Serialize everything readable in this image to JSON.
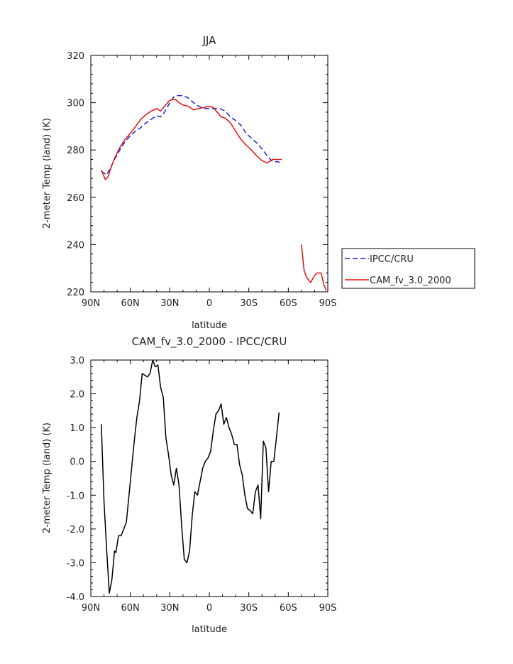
{
  "chart_data": [
    {
      "type": "line",
      "title": "JJA",
      "xlabel": "latitude",
      "ylabel": "2-meter Temp (land) (K)",
      "xlim": [
        90,
        -90
      ],
      "ylim": [
        220,
        320
      ],
      "x_ticks": [
        90,
        60,
        30,
        0,
        -30,
        -60,
        -90
      ],
      "x_tick_labels": [
        "90N",
        "60N",
        "30N",
        "0",
        "30S",
        "60S",
        "90S"
      ],
      "y_ticks": [
        220,
        240,
        260,
        280,
        300,
        320
      ],
      "y_tick_labels": [
        "220",
        "240",
        "260",
        "280",
        "300",
        "320"
      ],
      "legend": {
        "placement": "right, outside the plot"
      },
      "series": [
        {
          "name": "IPCC/CRU",
          "color": "#1f1fd6",
          "dash": "dashed",
          "segments": [
            {
              "x": [
                82,
                78,
                75,
                72,
                68,
                64,
                60,
                56,
                52,
                48,
                44,
                40,
                37,
                34,
                30,
                27,
                24,
                20,
                16,
                12,
                8,
                4,
                0,
                -4,
                -8,
                -12,
                -16,
                -20,
                -24,
                -28,
                -32,
                -36,
                -40,
                -44,
                -48,
                -52,
                -55
              ],
              "y": [
                271,
                269.5,
                272.5,
                276,
                280,
                283.5,
                286,
                288,
                289.5,
                291.5,
                293,
                294.5,
                294,
                296,
                300,
                302.5,
                303,
                303,
                302,
                300,
                298.5,
                297.5,
                297.5,
                297.5,
                297.5,
                296.5,
                294,
                292.5,
                290.5,
                287,
                285,
                283,
                280.5,
                277.5,
                275,
                275,
                274.5
              ]
            }
          ]
        },
        {
          "name": "CAM_fv_3.0_2000",
          "color": "#e01010",
          "dash": "solid",
          "segments": [
            {
              "x": [
                82,
                79,
                77,
                75,
                72,
                68,
                64,
                60,
                56,
                52,
                48,
                44,
                40,
                37,
                34,
                30,
                26,
                23,
                20,
                16,
                12,
                8,
                4,
                0,
                -3,
                -6,
                -9,
                -12,
                -16,
                -20,
                -24,
                -28,
                -32,
                -36,
                -40,
                -44,
                -48,
                -52,
                -55
              ],
              "y": [
                271.5,
                267.5,
                268.5,
                272,
                276.5,
                281,
                284.5,
                287,
                290,
                293,
                295,
                296.5,
                297.5,
                296.5,
                298.5,
                301,
                301.5,
                300,
                299,
                298.5,
                297,
                297.5,
                298,
                298.5,
                298,
                296,
                294,
                293.5,
                291.5,
                288,
                284.5,
                282,
                280,
                277.5,
                275.5,
                274.5,
                276,
                276,
                276
              ]
            },
            {
              "x": [
                -70,
                -72,
                -74,
                -77,
                -80,
                -82,
                -85,
                -87,
                -89
              ],
              "y": [
                240,
                229,
                226,
                224,
                227,
                228,
                228,
                223,
                220.5
              ]
            }
          ]
        }
      ]
    },
    {
      "type": "line",
      "title": "CAM_fv_3.0_2000 - IPCC/CRU",
      "xlabel": "latitude",
      "ylabel": "2-meter Temp (land) (K)",
      "xlim": [
        90,
        -90
      ],
      "ylim": [
        -4.0,
        3.0
      ],
      "x_ticks": [
        90,
        60,
        30,
        0,
        -30,
        -60,
        -90
      ],
      "x_tick_labels": [
        "90N",
        "60N",
        "30N",
        "0",
        "30S",
        "60S",
        "90S"
      ],
      "y_ticks": [
        -4,
        -3,
        -2,
        -1,
        0,
        1,
        2,
        3
      ],
      "y_tick_labels": [
        "-4.0",
        "-3.0",
        "-2.0",
        "-1.0",
        "0.0",
        "1.0",
        "2.0",
        "3.0"
      ],
      "series": [
        {
          "color": "#000000",
          "dash": "solid",
          "segments": [
            {
              "x": [
                82,
                80,
                78,
                76,
                74,
                72,
                71,
                69,
                67,
                65,
                63,
                61,
                59,
                57,
                55,
                53,
                51,
                49,
                47,
                45,
                43,
                41,
                39,
                37,
                35,
                33,
                31,
                29,
                27,
                25,
                23,
                21,
                19,
                17,
                15,
                13,
                11,
                9,
                7,
                5,
                3,
                1,
                -1,
                -3,
                -5,
                -7,
                -9,
                -11,
                -13,
                -15,
                -17,
                -19,
                -21,
                -23,
                -25,
                -27,
                -29,
                -31,
                -33,
                -35,
                -37,
                -39,
                -41,
                -43,
                -45,
                -47,
                -49,
                -51,
                -53
              ],
              "y": [
                1.1,
                -1.2,
                -2.6,
                -3.9,
                -3.5,
                -2.65,
                -2.7,
                -2.2,
                -2.2,
                -2.0,
                -1.8,
                -1.0,
                -0.2,
                0.6,
                1.3,
                1.8,
                2.6,
                2.55,
                2.5,
                2.6,
                3.0,
                2.8,
                2.85,
                2.2,
                1.9,
                0.7,
                0.2,
                -0.4,
                -0.7,
                -0.2,
                -0.7,
                -1.9,
                -2.9,
                -3.0,
                -2.65,
                -1.6,
                -0.9,
                -1.0,
                -0.6,
                -0.2,
                0.0,
                0.1,
                0.3,
                0.9,
                1.4,
                1.5,
                1.7,
                1.1,
                1.3,
                1.0,
                0.8,
                0.5,
                0.5,
                -0.1,
                -0.4,
                -1.0,
                -1.4,
                -1.45,
                -1.55,
                -0.9,
                -0.7,
                -1.7,
                0.6,
                0.4,
                -0.9,
                0.0,
                0.0,
                0.7,
                1.45
              ]
            }
          ]
        }
      ]
    }
  ]
}
